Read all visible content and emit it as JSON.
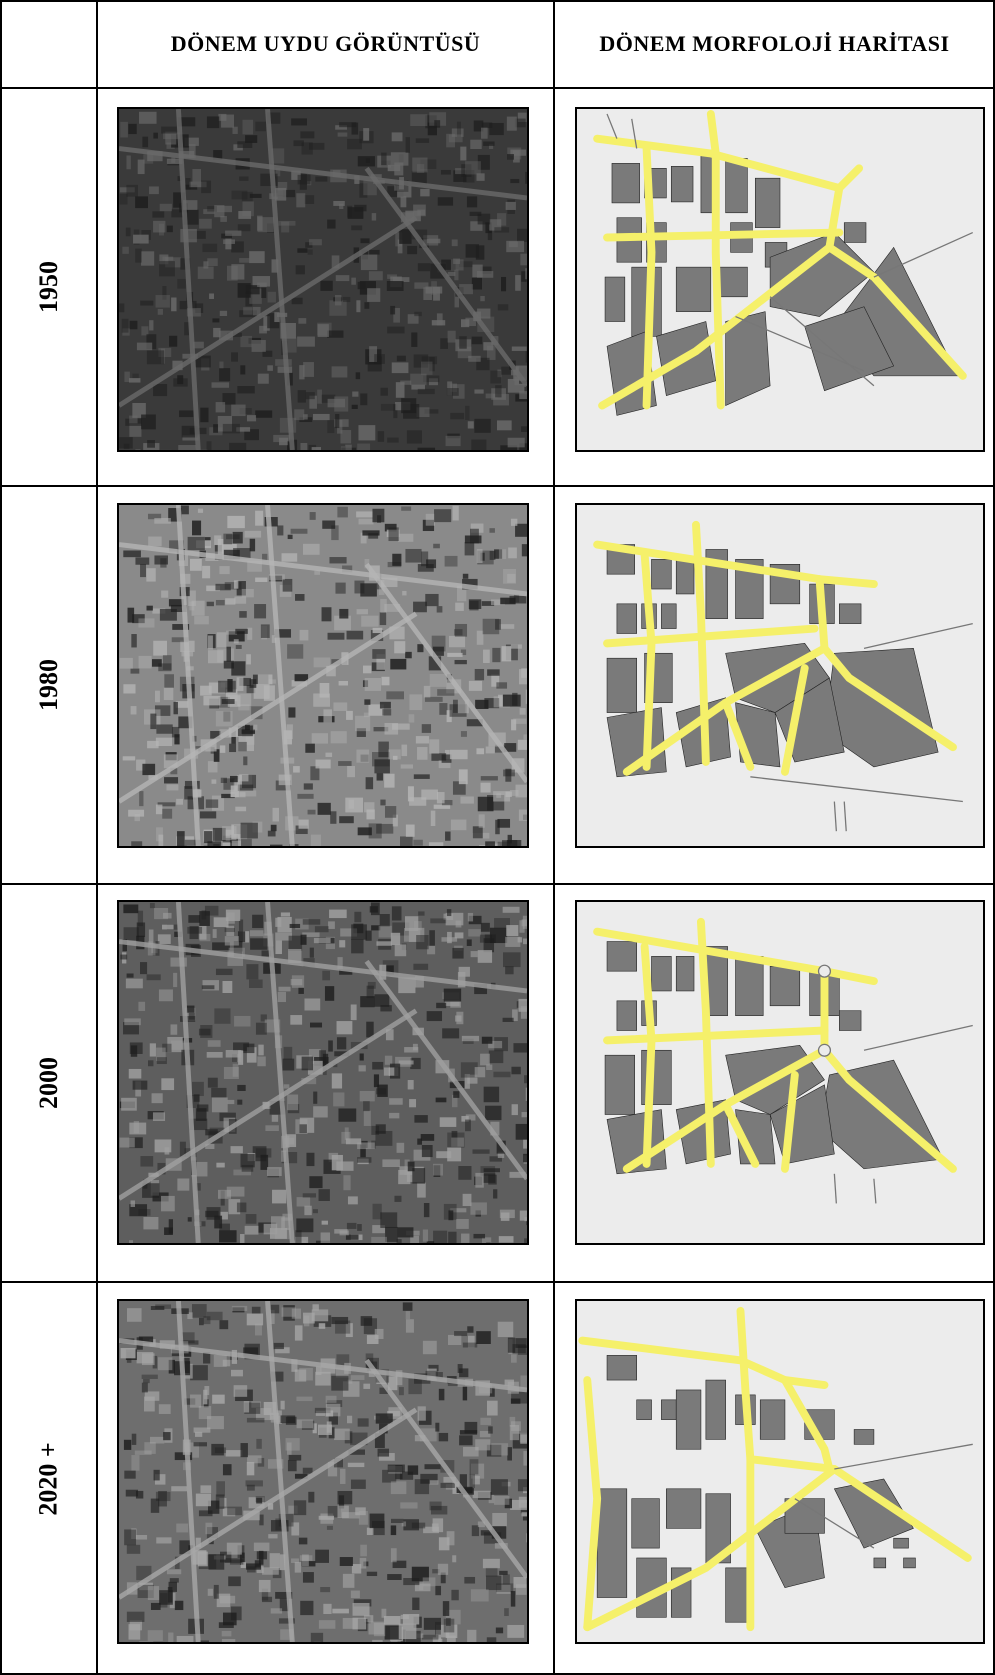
{
  "table": {
    "header": {
      "corner": "",
      "col_satellite": "DÖNEM UYDU GÖRÜNTÜSÜ",
      "col_morphology": "DÖNEM MORFOLOJİ HARİTASI"
    },
    "rows": [
      {
        "year": "1950",
        "satellite_tone": "#3a3a3a",
        "satellite_light": "#6a6a6a"
      },
      {
        "year": "1980",
        "satellite_tone": "#8a8a8a",
        "satellite_light": "#b5b5b5"
      },
      {
        "year": "2000",
        "satellite_tone": "#5e5e5e",
        "satellite_light": "#a0a0a0"
      },
      {
        "year": "2020 +",
        "satellite_tone": "#6e6e6e",
        "satellite_light": "#a8a8a8"
      }
    ]
  },
  "colors": {
    "road": "#f5f06a",
    "block": "#7a7a7a",
    "map_bg": "#ececec",
    "border": "#000000"
  }
}
